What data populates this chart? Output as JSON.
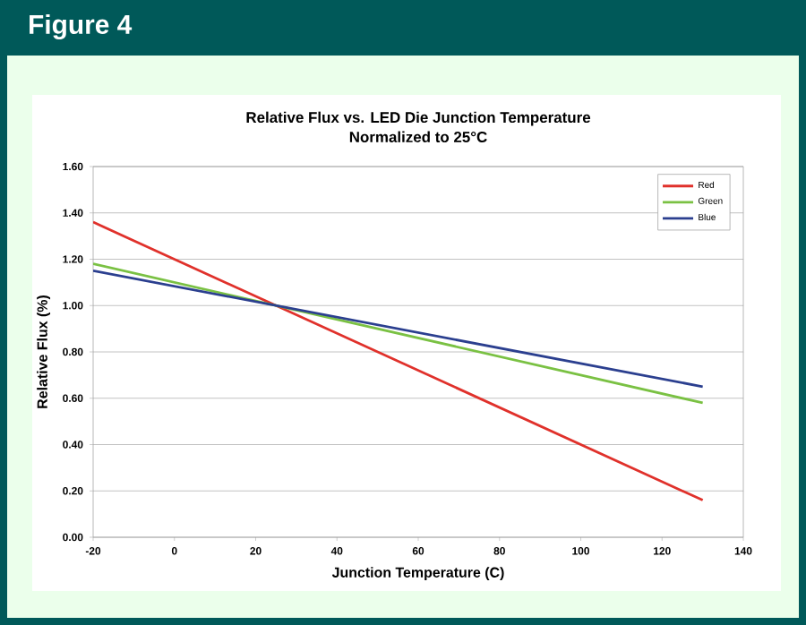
{
  "chart_data": {
    "type": "line",
    "title": "Relative Flux vs. LED Die Junction Temperature",
    "subtitle": "Normalized to 25°C",
    "annotations": [
      "Figure 4"
    ],
    "xlabel": "Junction Temperature (C)",
    "ylabel": "Relative Flux (%)",
    "x": [
      -20,
      130
    ],
    "series": [
      {
        "name": "Red",
        "color": "#e0312b",
        "values": [
          1.36,
          0.16
        ]
      },
      {
        "name": "Green",
        "color": "#7ac143",
        "values": [
          1.18,
          0.58
        ]
      },
      {
        "name": "Blue",
        "color": "#2b3f8f",
        "values": [
          1.15,
          0.65
        ]
      }
    ],
    "xlim": [
      -20,
      140
    ],
    "xticks": [
      -20,
      0,
      20,
      40,
      60,
      80,
      100,
      120,
      140
    ],
    "ylim": [
      0,
      1.6
    ],
    "yticks": [
      {
        "value": 0,
        "label": "0.00"
      },
      {
        "value": 0.2,
        "label": "0.20"
      },
      {
        "value": 0.4,
        "label": "0.40"
      },
      {
        "value": 0.6,
        "label": "0.60"
      },
      {
        "value": 0.8,
        "label": "0.80"
      },
      {
        "value": 1.0,
        "label": "1.00"
      },
      {
        "value": 1.2,
        "label": "1.20"
      },
      {
        "value": 1.4,
        "label": "1.40"
      },
      {
        "value": 1.6,
        "label": "1.60"
      }
    ],
    "grid": "y",
    "legend": "top right",
    "marker": "none",
    "line_style": "solid"
  }
}
